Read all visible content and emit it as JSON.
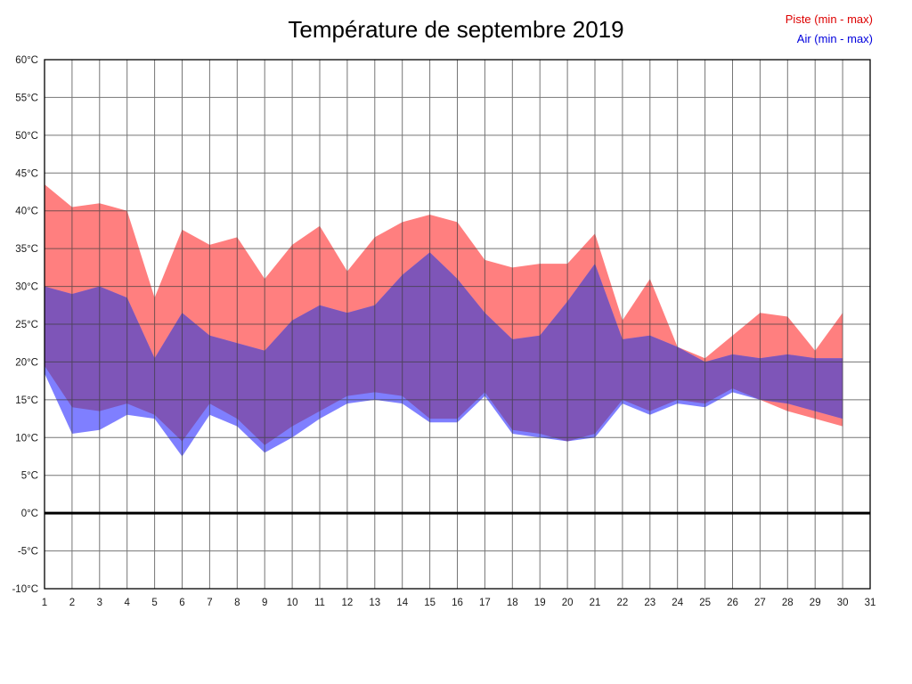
{
  "title": "Température de septembre 2019",
  "legend": {
    "piste": {
      "label": "Piste (min - max)",
      "color": "#dd0000"
    },
    "air": {
      "label": "Air (min - max)",
      "color": "#0000dd"
    }
  },
  "chart_data": {
    "type": "area",
    "title": "Température de septembre 2019",
    "x": [
      1,
      2,
      3,
      4,
      5,
      6,
      7,
      8,
      9,
      10,
      11,
      12,
      13,
      14,
      15,
      16,
      17,
      18,
      19,
      20,
      21,
      22,
      23,
      24,
      25,
      26,
      27,
      28,
      29,
      30
    ],
    "xlim": [
      1,
      31
    ],
    "ylim": [
      -10,
      60
    ],
    "ytick_step": 5,
    "ytick_suffix": "°C",
    "grid": true,
    "zero_line": true,
    "legend_position": "top-right",
    "series": [
      {
        "name": "Piste (min - max)",
        "color": "#FF7F7F",
        "max": [
          43.5,
          40.5,
          41,
          40,
          28.5,
          37.5,
          35.5,
          36.5,
          31,
          35.5,
          38,
          32,
          36.5,
          38.5,
          39.5,
          38.5,
          33.5,
          32.5,
          33,
          33,
          37,
          25.5,
          31,
          22,
          20.5,
          23.5,
          26.5,
          26,
          21.5,
          26.5
        ],
        "min": [
          19.5,
          14,
          13.5,
          14.5,
          13,
          9.5,
          14.5,
          12.5,
          9,
          11.5,
          13.5,
          15.5,
          16,
          15.5,
          12.5,
          12.5,
          16,
          11,
          10.5,
          9.5,
          10.5,
          15,
          13.5,
          15,
          14.5,
          16.5,
          15,
          13.5,
          12.5,
          11.5
        ]
      },
      {
        "name": "Air (min - max)",
        "color": "#7F7FFF",
        "max": [
          30,
          29,
          30,
          28.5,
          20.5,
          26.5,
          23.5,
          22.5,
          21.5,
          25.5,
          27.5,
          26.5,
          27.5,
          31.5,
          34.5,
          31,
          26.5,
          23,
          23.5,
          28,
          33,
          23,
          23.5,
          22,
          20,
          21,
          20.5,
          21,
          20.5,
          20.5
        ],
        "min": [
          18.5,
          10.5,
          11,
          13,
          12.5,
          7.5,
          13,
          11.5,
          8,
          10,
          12.5,
          14.5,
          15,
          14.5,
          12,
          12,
          15.5,
          10.5,
          10,
          9.5,
          10,
          14.5,
          13,
          14.5,
          14,
          16,
          15,
          14.5,
          13.5,
          12.5
        ]
      }
    ],
    "overlap_color": "#7E55B8"
  }
}
